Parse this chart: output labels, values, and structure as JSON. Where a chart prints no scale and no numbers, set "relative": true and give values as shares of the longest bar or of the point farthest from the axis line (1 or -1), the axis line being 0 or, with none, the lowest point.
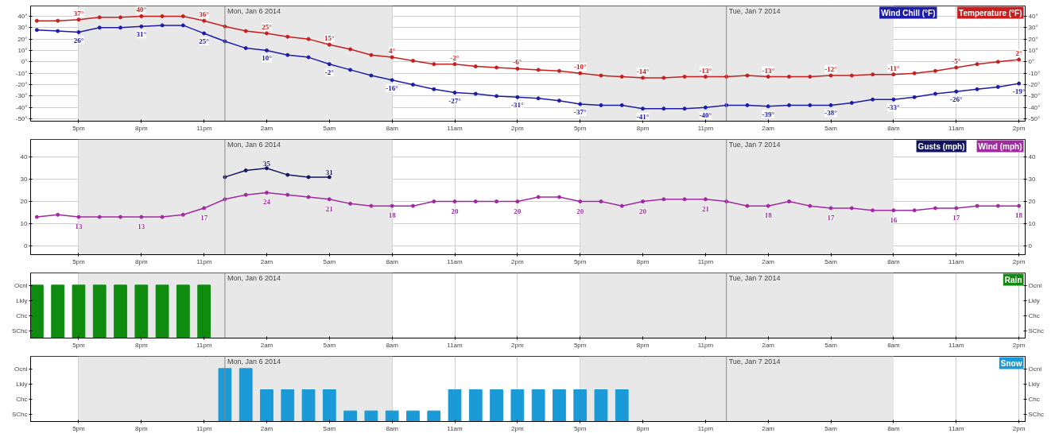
{
  "chart_data": [
    {
      "type": "line",
      "x": [
        "2014-01-05T15:00",
        "2014-01-05T16:00",
        "2014-01-05T17:00",
        "2014-01-05T18:00",
        "2014-01-05T19:00",
        "2014-01-05T20:00",
        "2014-01-05T21:00",
        "2014-01-05T22:00",
        "2014-01-05T23:00",
        "2014-01-06T00:00",
        "2014-01-06T01:00",
        "2014-01-06T02:00",
        "2014-01-06T03:00",
        "2014-01-06T04:00",
        "2014-01-06T05:00",
        "2014-01-06T06:00",
        "2014-01-06T07:00",
        "2014-01-06T08:00",
        "2014-01-06T09:00",
        "2014-01-06T10:00",
        "2014-01-06T11:00",
        "2014-01-06T12:00",
        "2014-01-06T13:00",
        "2014-01-06T14:00",
        "2014-01-06T15:00",
        "2014-01-06T16:00",
        "2014-01-06T17:00",
        "2014-01-06T18:00",
        "2014-01-06T19:00",
        "2014-01-06T20:00",
        "2014-01-06T21:00",
        "2014-01-06T22:00",
        "2014-01-06T23:00",
        "2014-01-07T00:00",
        "2014-01-07T01:00",
        "2014-01-07T02:00",
        "2014-01-07T03:00",
        "2014-01-07T04:00",
        "2014-01-07T05:00",
        "2014-01-07T06:00",
        "2014-01-07T07:00",
        "2014-01-07T08:00",
        "2014-01-07T09:00",
        "2014-01-07T10:00",
        "2014-01-07T11:00",
        "2014-01-07T12:00",
        "2014-01-07T13:00",
        "2014-01-07T14:00"
      ],
      "series": [
        {
          "name": "Wind Chill (°F)",
          "color": "#1c1ca8",
          "values": [
            28,
            27,
            26,
            30,
            30,
            31,
            32,
            32,
            25,
            18,
            12,
            10,
            6,
            4,
            -2,
            -7,
            -12,
            -16,
            -20,
            -24,
            -27,
            -28,
            -30,
            -31,
            -32,
            -34,
            -37,
            -38,
            -38,
            -41,
            -41,
            -41,
            -40,
            -38,
            -38,
            -39,
            -38,
            -38,
            -38,
            -36,
            -33,
            -33,
            -31,
            -28,
            -26,
            -24,
            -22,
            -19
          ],
          "value_labels": [
            null,
            null,
            "26°",
            null,
            null,
            "31°",
            null,
            null,
            "25°",
            null,
            null,
            "10°",
            null,
            null,
            "-2°",
            null,
            null,
            "-16°",
            null,
            null,
            "-27°",
            null,
            null,
            "-31°",
            null,
            null,
            "-37°",
            null,
            null,
            "-41°",
            null,
            null,
            "-40°",
            null,
            null,
            "-39°",
            null,
            null,
            "-38°",
            null,
            null,
            "-33°",
            null,
            null,
            "-26°",
            null,
            null,
            "-19°"
          ]
        },
        {
          "name": "Temperature (°F)",
          "color": "#c81e1e",
          "values": [
            36,
            36,
            37,
            39,
            39,
            40,
            40,
            40,
            36,
            31,
            27,
            25,
            22,
            20,
            15,
            11,
            6,
            4,
            1,
            -2,
            -2,
            -4,
            -5,
            -6,
            -7,
            -8,
            -10,
            -12,
            -13,
            -14,
            -14,
            -13,
            -13,
            -13,
            -12,
            -13,
            -13,
            -13,
            -12,
            -12,
            -11,
            -11,
            -10,
            -8,
            -5,
            -2,
            0,
            2
          ],
          "value_labels": [
            null,
            null,
            "37°",
            null,
            null,
            "40°",
            null,
            null,
            "36°",
            null,
            null,
            "25°",
            null,
            null,
            "15°",
            null,
            null,
            "4°",
            null,
            null,
            "-2°",
            null,
            null,
            "-6°",
            null,
            null,
            "-10°",
            null,
            null,
            "-14°",
            null,
            null,
            "-13°",
            null,
            null,
            "-13°",
            null,
            null,
            "-12°",
            null,
            null,
            "-11°",
            null,
            null,
            "-5°",
            null,
            null,
            "2°"
          ]
        }
      ],
      "xlim": [
        "2014-01-05T14:42",
        "2014-01-07T14:18"
      ],
      "xticks": [
        {
          "value": "2014-01-05T17:00",
          "label": "5pm"
        },
        {
          "value": "2014-01-05T20:00",
          "label": "8pm"
        },
        {
          "value": "2014-01-05T23:00",
          "label": "11pm"
        },
        {
          "value": "2014-01-06T02:00",
          "label": "2am"
        },
        {
          "value": "2014-01-06T05:00",
          "label": "5am"
        },
        {
          "value": "2014-01-06T08:00",
          "label": "8am"
        },
        {
          "value": "2014-01-06T11:00",
          "label": "11am"
        },
        {
          "value": "2014-01-06T14:00",
          "label": "2pm"
        },
        {
          "value": "2014-01-06T17:00",
          "label": "5pm"
        },
        {
          "value": "2014-01-06T20:00",
          "label": "8pm"
        },
        {
          "value": "2014-01-06T23:00",
          "label": "11pm"
        },
        {
          "value": "2014-01-07T02:00",
          "label": "2am"
        },
        {
          "value": "2014-01-07T05:00",
          "label": "5am"
        },
        {
          "value": "2014-01-07T08:00",
          "label": "8am"
        },
        {
          "value": "2014-01-07T11:00",
          "label": "11am"
        },
        {
          "value": "2014-01-07T14:00",
          "label": "2pm"
        }
      ],
      "ylim": [
        -52,
        49
      ],
      "yticks": [
        {
          "value": 40,
          "label": "40°"
        },
        {
          "value": 30,
          "label": "30°"
        },
        {
          "value": 20,
          "label": "20°"
        },
        {
          "value": 10,
          "label": "10°"
        },
        {
          "value": 0,
          "label": "0°"
        },
        {
          "value": -10,
          "label": "-10°"
        },
        {
          "value": -20,
          "label": "-20°"
        },
        {
          "value": -30,
          "label": "-30°"
        },
        {
          "value": -40,
          "label": "-40°"
        },
        {
          "value": -50,
          "label": "-50°"
        }
      ],
      "y2lim": [
        -52,
        49
      ],
      "y2ticks": [
        {
          "value": 40,
          "label": "40°"
        },
        {
          "value": 30,
          "label": "30°"
        },
        {
          "value": 20,
          "label": "20°"
        },
        {
          "value": 10,
          "label": "10°"
        },
        {
          "value": 0,
          "label": "0°"
        },
        {
          "value": -10,
          "label": "-10°"
        },
        {
          "value": -20,
          "label": "-20°"
        },
        {
          "value": -30,
          "label": "-30°"
        },
        {
          "value": -40,
          "label": "-40°"
        },
        {
          "value": -50,
          "label": "-50°"
        }
      ],
      "ref_lines": [
        {
          "axis": "x",
          "value": "2014-01-06T00:00",
          "label": "Mon, Jan 6 2014"
        },
        {
          "axis": "x",
          "value": "2014-01-07T00:00",
          "label": "Tue, Jan 7 2014"
        }
      ],
      "bands": [
        {
          "axis": "x",
          "from": "2014-01-05T17:00",
          "to": "2014-01-06T08:00",
          "color": "#e8e8e8"
        },
        {
          "axis": "x",
          "from": "2014-01-06T17:00",
          "to": "2014-01-07T08:00",
          "color": "#e8e8e8"
        }
      ],
      "grid": true,
      "legend": "top right",
      "marker": "circle",
      "line_style": "solid"
    },
    {
      "type": "line",
      "x": [
        "2014-01-05T15:00",
        "2014-01-05T16:00",
        "2014-01-05T17:00",
        "2014-01-05T18:00",
        "2014-01-05T19:00",
        "2014-01-05T20:00",
        "2014-01-05T21:00",
        "2014-01-05T22:00",
        "2014-01-05T23:00",
        "2014-01-06T00:00",
        "2014-01-06T01:00",
        "2014-01-06T02:00",
        "2014-01-06T03:00",
        "2014-01-06T04:00",
        "2014-01-06T05:00",
        "2014-01-06T06:00",
        "2014-01-06T07:00",
        "2014-01-06T08:00",
        "2014-01-06T09:00",
        "2014-01-06T10:00",
        "2014-01-06T11:00",
        "2014-01-06T12:00",
        "2014-01-06T13:00",
        "2014-01-06T14:00",
        "2014-01-06T15:00",
        "2014-01-06T16:00",
        "2014-01-06T17:00",
        "2014-01-06T18:00",
        "2014-01-06T19:00",
        "2014-01-06T20:00",
        "2014-01-06T21:00",
        "2014-01-06T22:00",
        "2014-01-06T23:00",
        "2014-01-07T00:00",
        "2014-01-07T01:00",
        "2014-01-07T02:00",
        "2014-01-07T03:00",
        "2014-01-07T04:00",
        "2014-01-07T05:00",
        "2014-01-07T06:00",
        "2014-01-07T07:00",
        "2014-01-07T08:00",
        "2014-01-07T09:00",
        "2014-01-07T10:00",
        "2014-01-07T11:00",
        "2014-01-07T12:00",
        "2014-01-07T13:00",
        "2014-01-07T14:00"
      ],
      "series": [
        {
          "name": "Gusts (mph)",
          "color": "#14145e",
          "values": [
            null,
            null,
            null,
            null,
            null,
            null,
            null,
            null,
            null,
            31,
            34,
            35,
            32,
            31,
            31,
            null,
            null,
            null,
            null,
            null,
            null,
            null,
            null,
            null,
            null,
            null,
            null,
            null,
            null,
            null,
            null,
            null,
            null,
            null,
            null,
            null,
            null,
            null,
            null,
            null,
            null,
            null,
            null,
            null,
            null,
            null,
            null,
            null
          ],
          "value_labels": [
            null,
            null,
            null,
            null,
            null,
            null,
            null,
            null,
            null,
            null,
            null,
            "35",
            null,
            null,
            "31",
            null,
            null,
            null,
            null,
            null,
            null,
            null,
            null,
            null,
            null,
            null,
            null,
            null,
            null,
            null,
            null,
            null,
            null,
            null,
            null,
            null,
            null,
            null,
            null,
            null,
            null,
            null,
            null,
            null,
            null,
            null,
            null,
            null
          ]
        },
        {
          "name": "Wind (mph)",
          "color": "#a02aa0",
          "values": [
            13,
            14,
            13,
            13,
            13,
            13,
            13,
            14,
            17,
            21,
            23,
            24,
            23,
            22,
            21,
            19,
            18,
            18,
            18,
            20,
            20,
            20,
            20,
            20,
            22,
            22,
            20,
            20,
            18,
            20,
            21,
            21,
            21,
            20,
            18,
            18,
            20,
            18,
            17,
            17,
            16,
            16,
            16,
            17,
            17,
            18,
            18,
            18
          ],
          "value_labels": [
            null,
            null,
            "13",
            null,
            null,
            "13",
            null,
            null,
            "17",
            null,
            null,
            "24",
            null,
            null,
            "21",
            null,
            null,
            "18",
            null,
            null,
            "20",
            null,
            null,
            "20",
            null,
            null,
            "20",
            null,
            null,
            "20",
            null,
            null,
            "21",
            null,
            null,
            "18",
            null,
            null,
            "17",
            null,
            null,
            "16",
            null,
            null,
            "17",
            null,
            null,
            "18"
          ]
        }
      ],
      "xlim": [
        "2014-01-05T14:42",
        "2014-01-07T14:18"
      ],
      "xticks": [
        {
          "value": "2014-01-05T17:00",
          "label": "5pm"
        },
        {
          "value": "2014-01-05T20:00",
          "label": "8pm"
        },
        {
          "value": "2014-01-05T23:00",
          "label": "11pm"
        },
        {
          "value": "2014-01-06T02:00",
          "label": "2am"
        },
        {
          "value": "2014-01-06T05:00",
          "label": "5am"
        },
        {
          "value": "2014-01-06T08:00",
          "label": "8am"
        },
        {
          "value": "2014-01-06T11:00",
          "label": "11am"
        },
        {
          "value": "2014-01-06T14:00",
          "label": "2pm"
        },
        {
          "value": "2014-01-06T17:00",
          "label": "5pm"
        },
        {
          "value": "2014-01-06T20:00",
          "label": "8pm"
        },
        {
          "value": "2014-01-06T23:00",
          "label": "11pm"
        },
        {
          "value": "2014-01-07T02:00",
          "label": "2am"
        },
        {
          "value": "2014-01-07T05:00",
          "label": "5am"
        },
        {
          "value": "2014-01-07T08:00",
          "label": "8am"
        },
        {
          "value": "2014-01-07T11:00",
          "label": "11am"
        },
        {
          "value": "2014-01-07T14:00",
          "label": "2pm"
        }
      ],
      "ylim": [
        -4,
        48
      ],
      "yticks": [
        0,
        10,
        20,
        30,
        40
      ],
      "y2lim": [
        -4,
        48
      ],
      "y2ticks": [
        0,
        10,
        20,
        30,
        40
      ],
      "ref_lines": [
        {
          "axis": "x",
          "value": "2014-01-06T00:00",
          "label": "Mon, Jan 6 2014"
        },
        {
          "axis": "x",
          "value": "2014-01-07T00:00",
          "label": "Tue, Jan 7 2014"
        }
      ],
      "bands": [
        {
          "axis": "x",
          "from": "2014-01-05T17:00",
          "to": "2014-01-06T08:00",
          "color": "#e8e8e8"
        },
        {
          "axis": "x",
          "from": "2014-01-06T17:00",
          "to": "2014-01-07T08:00",
          "color": "#e8e8e8"
        }
      ],
      "grid": true,
      "legend": "top right",
      "marker": "circle",
      "line_style": "solid"
    },
    {
      "type": "bar",
      "relative": true,
      "series": [
        {
          "name": "Rain",
          "color": "#0f8c0f",
          "x": [
            "2014-01-05T15:00",
            "2014-01-05T16:00",
            "2014-01-05T17:00",
            "2014-01-05T18:00",
            "2014-01-05T19:00",
            "2014-01-05T20:00",
            "2014-01-05T21:00",
            "2014-01-05T22:00",
            "2014-01-05T23:00"
          ],
          "values": [
            1,
            1,
            1,
            1,
            1,
            1,
            1,
            1,
            1
          ]
        }
      ],
      "annotations": [
        "Ocnl",
        "Lkly",
        "Chc",
        "SChc"
      ],
      "xlim": [
        "2014-01-05T14:42",
        "2014-01-07T14:18"
      ],
      "xticks": [
        {
          "value": "2014-01-05T17:00",
          "label": "5pm"
        },
        {
          "value": "2014-01-05T20:00",
          "label": "8pm"
        },
        {
          "value": "2014-01-05T23:00",
          "label": "11pm"
        },
        {
          "value": "2014-01-06T02:00",
          "label": "2am"
        },
        {
          "value": "2014-01-06T05:00",
          "label": "5am"
        },
        {
          "value": "2014-01-06T08:00",
          "label": "8am"
        },
        {
          "value": "2014-01-06T11:00",
          "label": "11am"
        },
        {
          "value": "2014-01-06T14:00",
          "label": "2pm"
        },
        {
          "value": "2014-01-06T17:00",
          "label": "5pm"
        },
        {
          "value": "2014-01-06T20:00",
          "label": "8pm"
        },
        {
          "value": "2014-01-06T23:00",
          "label": "11pm"
        },
        {
          "value": "2014-01-07T02:00",
          "label": "2am"
        },
        {
          "value": "2014-01-07T05:00",
          "label": "5am"
        },
        {
          "value": "2014-01-07T08:00",
          "label": "8am"
        },
        {
          "value": "2014-01-07T11:00",
          "label": "11am"
        },
        {
          "value": "2014-01-07T14:00",
          "label": "2pm"
        }
      ],
      "ref_lines": [
        {
          "axis": "x",
          "value": "2014-01-06T00:00",
          "label": "Mon, Jan 6 2014"
        },
        {
          "axis": "x",
          "value": "2014-01-07T00:00",
          "label": "Tue, Jan 7 2014"
        }
      ],
      "bands": [
        {
          "axis": "x",
          "from": "2014-01-05T17:00",
          "to": "2014-01-06T08:00",
          "color": "#e8e8e8"
        },
        {
          "axis": "x",
          "from": "2014-01-06T17:00",
          "to": "2014-01-07T08:00",
          "color": "#e8e8e8"
        }
      ],
      "grid": "x",
      "legend": "top right"
    },
    {
      "type": "bar",
      "relative": true,
      "series": [
        {
          "name": "Snow",
          "color": "#1a9ad6",
          "x": [
            "2014-01-06T00:00",
            "2014-01-06T01:00",
            "2014-01-06T02:00",
            "2014-01-06T03:00",
            "2014-01-06T04:00",
            "2014-01-06T05:00",
            "2014-01-06T06:00",
            "2014-01-06T07:00",
            "2014-01-06T08:00",
            "2014-01-06T09:00",
            "2014-01-06T10:00",
            "2014-01-06T11:00",
            "2014-01-06T12:00",
            "2014-01-06T13:00",
            "2014-01-06T14:00",
            "2014-01-06T15:00",
            "2014-01-06T16:00",
            "2014-01-06T17:00",
            "2014-01-06T18:00",
            "2014-01-06T19:00"
          ],
          "values": [
            1,
            1,
            0.6,
            0.6,
            0.6,
            0.6,
            0.2,
            0.2,
            0.2,
            0.2,
            0.2,
            0.6,
            0.6,
            0.6,
            0.6,
            0.6,
            0.6,
            0.6,
            0.6,
            0.6
          ]
        }
      ],
      "annotations": [
        "Ocnl",
        "Lkly",
        "Chc",
        "SChc"
      ],
      "xlim": [
        "2014-01-05T14:42",
        "2014-01-07T14:18"
      ],
      "xticks": [
        {
          "value": "2014-01-05T17:00",
          "label": "5pm"
        },
        {
          "value": "2014-01-05T20:00",
          "label": "8pm"
        },
        {
          "value": "2014-01-05T23:00",
          "label": "11pm"
        },
        {
          "value": "2014-01-06T02:00",
          "label": "2am"
        },
        {
          "value": "2014-01-06T05:00",
          "label": "5am"
        },
        {
          "value": "2014-01-06T08:00",
          "label": "8am"
        },
        {
          "value": "2014-01-06T11:00",
          "label": "11am"
        },
        {
          "value": "2014-01-06T14:00",
          "label": "2pm"
        },
        {
          "value": "2014-01-06T17:00",
          "label": "5pm"
        },
        {
          "value": "2014-01-06T20:00",
          "label": "8pm"
        },
        {
          "value": "2014-01-06T23:00",
          "label": "11pm"
        },
        {
          "value": "2014-01-07T02:00",
          "label": "2am"
        },
        {
          "value": "2014-01-07T05:00",
          "label": "5am"
        },
        {
          "value": "2014-01-07T08:00",
          "label": "8am"
        },
        {
          "value": "2014-01-07T11:00",
          "label": "11am"
        },
        {
          "value": "2014-01-07T14:00",
          "label": "2pm"
        }
      ],
      "ref_lines": [
        {
          "axis": "x",
          "value": "2014-01-06T00:00",
          "label": "Mon, Jan 6 2014"
        },
        {
          "axis": "x",
          "value": "2014-01-07T00:00",
          "label": "Tue, Jan 7 2014"
        }
      ],
      "bands": [
        {
          "axis": "x",
          "from": "2014-01-05T17:00",
          "to": "2014-01-06T08:00",
          "color": "#e8e8e8"
        },
        {
          "axis": "x",
          "from": "2014-01-06T17:00",
          "to": "2014-01-07T08:00",
          "color": "#e8e8e8"
        }
      ],
      "grid": "x",
      "legend": "top right"
    }
  ]
}
